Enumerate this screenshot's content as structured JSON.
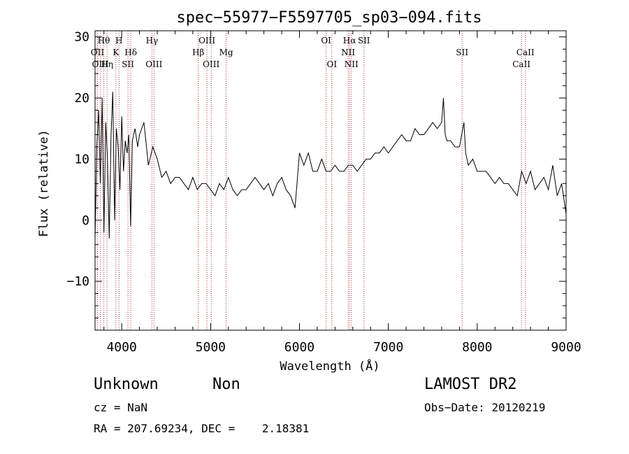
{
  "chart_data": {
    "type": "line",
    "title": "spec−55977−F5597705_sp03−094.fits",
    "xlabel": "Wavelength (Å)",
    "ylabel": "Flux (relative)",
    "xlim": [
      3700,
      9000
    ],
    "ylim": [
      -18,
      31
    ],
    "x_ticks": [
      4000,
      5000,
      6000,
      7000,
      8000,
      9000
    ],
    "y_ticks": [
      -10,
      0,
      10,
      20,
      30
    ],
    "grid": false,
    "series": [
      {
        "x": [
          3700,
          3720,
          3740,
          3760,
          3780,
          3800,
          3820,
          3840,
          3860,
          3880,
          3900,
          3920,
          3940,
          3960,
          3980,
          4000,
          4020,
          4040,
          4060,
          4080,
          4100,
          4120,
          4150,
          4180,
          4200,
          4250,
          4300,
          4350,
          4400,
          4450,
          4500,
          4550,
          4600,
          4650,
          4700,
          4750,
          4800,
          4850,
          4900,
          4950,
          5000,
          5050,
          5100,
          5150,
          5200,
          5250,
          5300,
          5350,
          5400,
          5450,
          5500,
          5550,
          5600,
          5650,
          5700,
          5750,
          5800,
          5850,
          5900,
          5950,
          6000,
          6050,
          6100,
          6150,
          6200,
          6250,
          6300,
          6350,
          6400,
          6450,
          6500,
          6550,
          6600,
          6650,
          6700,
          6750,
          6800,
          6850,
          6900,
          6950,
          7000,
          7050,
          7100,
          7150,
          7200,
          7250,
          7300,
          7350,
          7400,
          7450,
          7500,
          7550,
          7600,
          7620,
          7640,
          7660,
          7700,
          7750,
          7800,
          7850,
          7870,
          7900,
          7950,
          8000,
          8050,
          8100,
          8150,
          8200,
          8250,
          8300,
          8350,
          8400,
          8450,
          8500,
          8550,
          8600,
          8650,
          8700,
          8750,
          8800,
          8850,
          8900,
          8950,
          9000
        ],
        "y": [
          -3,
          12,
          18,
          6,
          20,
          -2,
          16,
          10,
          -3,
          14,
          21,
          0,
          15,
          12,
          5,
          17,
          8,
          13,
          11,
          14,
          -1,
          13,
          15,
          12,
          14,
          16,
          9,
          12,
          10,
          7,
          8,
          6,
          7,
          7,
          6,
          5,
          7,
          5,
          6,
          6,
          5,
          4,
          6,
          5,
          7,
          5,
          4,
          5,
          5,
          6,
          7,
          6,
          5,
          6,
          4,
          6,
          7,
          5,
          4,
          2,
          11,
          9,
          11,
          8,
          8,
          10,
          8,
          8,
          9,
          8,
          8,
          9,
          9,
          8,
          9,
          10,
          10,
          11,
          11,
          12,
          11,
          12,
          13,
          14,
          13,
          13,
          15,
          14,
          14,
          15,
          16,
          15,
          16,
          20,
          14,
          13,
          13,
          12,
          12,
          16,
          11,
          9,
          10,
          8,
          8,
          8,
          7,
          6,
          7,
          6,
          6,
          5,
          4,
          8,
          6,
          8,
          5,
          6,
          7,
          5,
          9,
          4,
          6,
          1
        ]
      }
    ],
    "lines": [
      {
        "label": "Hθ",
        "x": 3798,
        "row": 1
      },
      {
        "label": "H",
        "x": 3970,
        "row": 1
      },
      {
        "label": "Hγ",
        "x": 4340,
        "row": 1
      },
      {
        "label": "OIII",
        "x": 4959,
        "row": 1
      },
      {
        "label": "OI",
        "x": 6300,
        "row": 1
      },
      {
        "label": "Hα",
        "x": 6563,
        "row": 1
      },
      {
        "label": "SII",
        "x": 6725,
        "row": 1
      },
      {
        "label": "OII",
        "x": 3727,
        "row": 2
      },
      {
        "label": "K",
        "x": 3934,
        "row": 2
      },
      {
        "label": "Hδ",
        "x": 4102,
        "row": 2
      },
      {
        "label": "Hβ",
        "x": 4861,
        "row": 2
      },
      {
        "label": "Mg",
        "x": 5175,
        "row": 2
      },
      {
        "label": "NII",
        "x": 6548,
        "row": 2
      },
      {
        "label": "SII",
        "x": 7830,
        "row": 2
      },
      {
        "label": "CaII",
        "x": 8542,
        "row": 2
      },
      {
        "label": "OIII",
        "x": 3760,
        "row": 3
      },
      {
        "label": "Hη",
        "x": 3835,
        "row": 3
      },
      {
        "label": "SII",
        "x": 4070,
        "row": 3
      },
      {
        "label": "OIII",
        "x": 4363,
        "row": 3
      },
      {
        "label": "OIII",
        "x": 5007,
        "row": 3
      },
      {
        "label": "OI",
        "x": 6364,
        "row": 3
      },
      {
        "label": "NII",
        "x": 6584,
        "row": 3
      },
      {
        "label": "CaII",
        "x": 8498,
        "row": 3
      }
    ]
  },
  "info": {
    "class": "Unknown",
    "subclass": "Non",
    "survey": "LAMOST DR2",
    "cz": "cz = NaN",
    "obs_date": "Obs−Date: 20120219",
    "radec": "RA = 207.69234, DEC =    2.18381"
  }
}
